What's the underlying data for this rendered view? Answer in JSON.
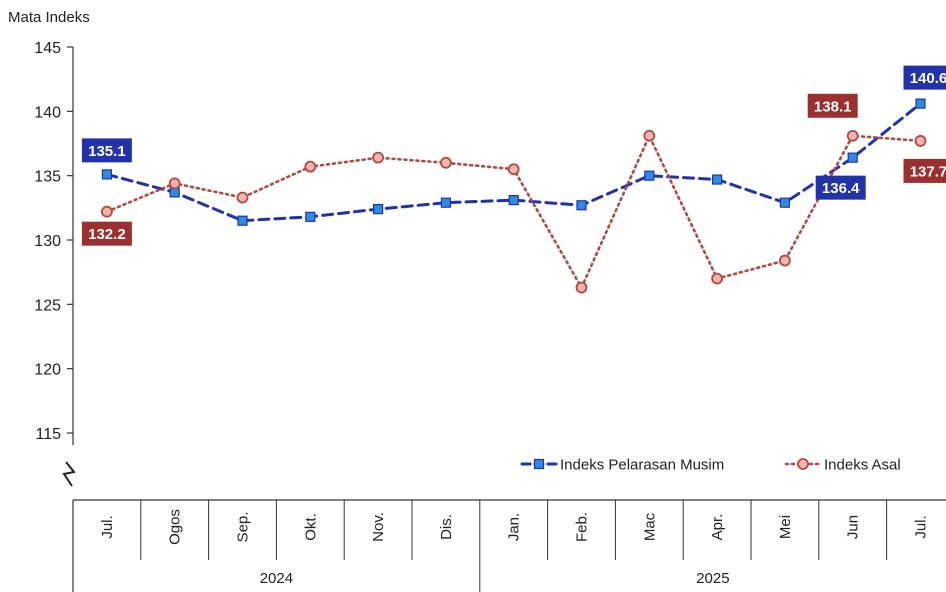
{
  "chart_data": {
    "type": "line",
    "ylabel": "Mata Indeks",
    "ylim": [
      112,
      145
    ],
    "yticks": [
      115,
      120,
      125,
      130,
      135,
      140,
      145
    ],
    "axis_break": true,
    "categories": [
      "Jul.",
      "Ogos",
      "Sep.",
      "Okt.",
      "Nov.",
      "Dis.",
      "Jan.",
      "Feb.",
      "Mac",
      "Apr.",
      "Mei",
      "Jun",
      "Jul."
    ],
    "year_groups": [
      {
        "label": "2024",
        "count": 6
      },
      {
        "label": "2025",
        "count": 7
      }
    ],
    "series": [
      {
        "name": "Indeks Pelarasan Musim",
        "color": "#2233aa",
        "marker_fill": "#2f8be0",
        "marker": "square",
        "line_style": "dashed",
        "values": [
          135.1,
          133.7,
          131.5,
          131.8,
          132.4,
          132.9,
          133.1,
          132.7,
          135.0,
          134.7,
          132.9,
          136.4,
          140.6
        ]
      },
      {
        "name": "Indeks Asal",
        "color": "#b04b43",
        "marker_fill": "#f1b3ad",
        "marker": "circle",
        "line_style": "dotted",
        "values": [
          132.2,
          134.4,
          133.3,
          135.7,
          136.4,
          136.0,
          135.5,
          126.3,
          138.1,
          127.0,
          128.4,
          138.1,
          137.7
        ]
      }
    ],
    "data_labels": [
      {
        "series": 0,
        "index": 0,
        "text": "135.1",
        "bg": "#2233aa"
      },
      {
        "series": 1,
        "index": 0,
        "text": "132.2",
        "bg": "#9b3030"
      },
      {
        "series": 1,
        "index": 11,
        "text": "138.1",
        "bg": "#9b3030"
      },
      {
        "series": 0,
        "index": 11,
        "text": "136.4",
        "bg": "#2233aa"
      },
      {
        "series": 0,
        "index": 12,
        "text": "140.6",
        "bg": "#2233aa"
      },
      {
        "series": 1,
        "index": 12,
        "text": "137.7",
        "bg": "#9b3030"
      }
    ],
    "legend_position": "bottom-right",
    "grid": false
  }
}
